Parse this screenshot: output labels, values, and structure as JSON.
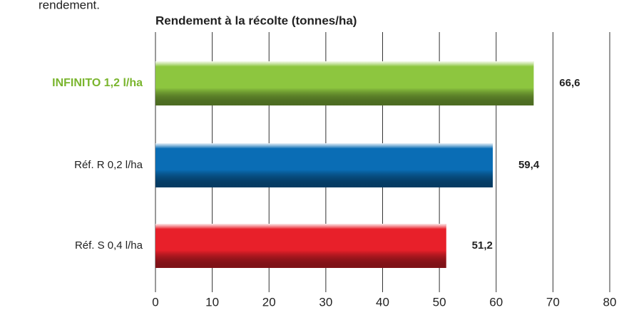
{
  "caption": "rendement.",
  "chart_data": {
    "type": "hbar",
    "title": "Rendement à la récolte (tonnes/ha)",
    "categories": [
      "INFINITO 1,2 l/ha",
      "Réf. R 0,2 l/ha",
      "Réf. S 0,4 l/ha"
    ],
    "values": [
      66.6,
      59.4,
      51.2
    ],
    "value_labels": [
      "66,6",
      "59,4",
      "51,2"
    ],
    "colors": [
      "#8dc63f",
      "#0a6db5",
      "#e8202a"
    ],
    "xlim": [
      0,
      80
    ],
    "xticks": [
      0,
      10,
      20,
      30,
      40,
      50,
      60,
      70,
      80
    ],
    "grid": true
  }
}
